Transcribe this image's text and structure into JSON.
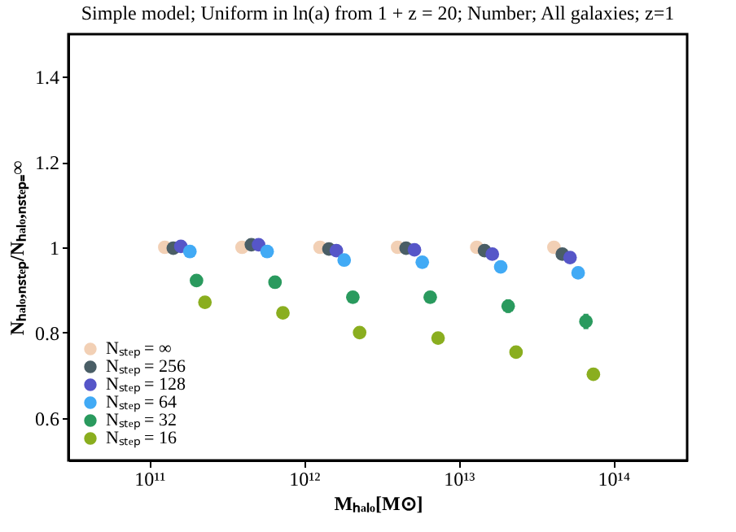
{
  "chart_data": {
    "type": "scatter",
    "title": "Simple model; Uniform in ln(a) from 1 + z = 20; Number; All galaxies; z=1",
    "xlabel": "Mₕₐₗₒ[M⊙]",
    "ylabel": "Nₕₐₗₒ,ₙₛₜₑₚ/Nₕₐₗₒ,ₙₛₜₑₚ₌∞",
    "log": "x",
    "xlim": [
      30000000000.0,
      300000000000000.0
    ],
    "xticks": [
      {
        "value": 100000000000.0,
        "label": "10¹¹"
      },
      {
        "value": 1000000000000.0,
        "label": "10¹²"
      },
      {
        "value": 10000000000000.0,
        "label": "10¹³"
      },
      {
        "value": 100000000000000.0,
        "label": "10¹⁴"
      }
    ],
    "ylim": [
      0.5,
      1.5
    ],
    "yticks": [
      0.6,
      0.8,
      1,
      1.2,
      1.4
    ],
    "grid": false,
    "legend": "bottom left",
    "marker": "circle",
    "series": [
      {
        "name": "Nₛₜₑₚ = ∞",
        "color": "#f2d0b5",
        "x": [
          126000000000.0,
          398000000000.0,
          1270000000000.0,
          4030000000000.0,
          13100000000000.0,
          41300000000000.0
        ],
        "values": [
          1.0,
          1.0,
          1.0,
          1.0,
          1.0,
          1.0
        ]
      },
      {
        "name": "Nₛₜₑₚ = 256",
        "color": "#4a5e66",
        "x": [
          143000000000.0,
          457000000000.0,
          1450000000000.0,
          4570000000000.0,
          14700000000000.0,
          46800000000000.0
        ],
        "values": [
          0.998,
          1.006,
          0.996,
          0.998,
          0.992,
          0.984
        ],
        "errors": [
          0.012,
          0.012,
          0.012,
          0.012,
          0.014,
          0.014
        ]
      },
      {
        "name": "Nₛₜₑₚ = 128",
        "color": "#5656c8",
        "x": [
          160000000000.0,
          509000000000.0,
          1620000000000.0,
          5180000000000.0,
          16500000000000.0,
          52500000000000.0
        ],
        "values": [
          1.002,
          1.006,
          0.992,
          0.994,
          0.984,
          0.976
        ],
        "errors": [
          0.012,
          0.012,
          0.012,
          0.012,
          0.014,
          0.014
        ]
      },
      {
        "name": "Nₛₜₑₚ = 64",
        "color": "#41aaf5",
        "x": [
          183000000000.0,
          578000000000.0,
          1820000000000.0,
          5820000000000.0,
          18700000000000.0,
          59200000000000.0
        ],
        "values": [
          0.99,
          0.99,
          0.97,
          0.965,
          0.954,
          0.94
        ],
        "errors": [
          0.012,
          0.012,
          0.012,
          0.012,
          0.014,
          0.014
        ]
      },
      {
        "name": "Nₛₜₑₚ = 32",
        "color": "#2a9a5e",
        "x": [
          202000000000.0,
          650000000000.0,
          2070000000000.0,
          6550000000000.0,
          20900000000000.0,
          66500000000000.0
        ],
        "values": [
          0.922,
          0.918,
          0.883,
          0.883,
          0.862,
          0.826
        ],
        "errors": [
          0.014,
          0.014,
          0.014,
          0.014,
          0.016,
          0.018
        ]
      },
      {
        "name": "Nₛₜₑₚ = 16",
        "color": "#8aae1f",
        "x": [
          229000000000.0,
          731000000000.0,
          2290000000000.0,
          7360000000000.0,
          23500000000000.0,
          74300000000000.0
        ],
        "values": [
          0.871,
          0.846,
          0.8,
          0.787,
          0.754,
          0.702
        ],
        "errors": [
          0.012,
          0.012,
          0.012,
          0.012,
          0.014,
          0.01
        ]
      }
    ]
  }
}
